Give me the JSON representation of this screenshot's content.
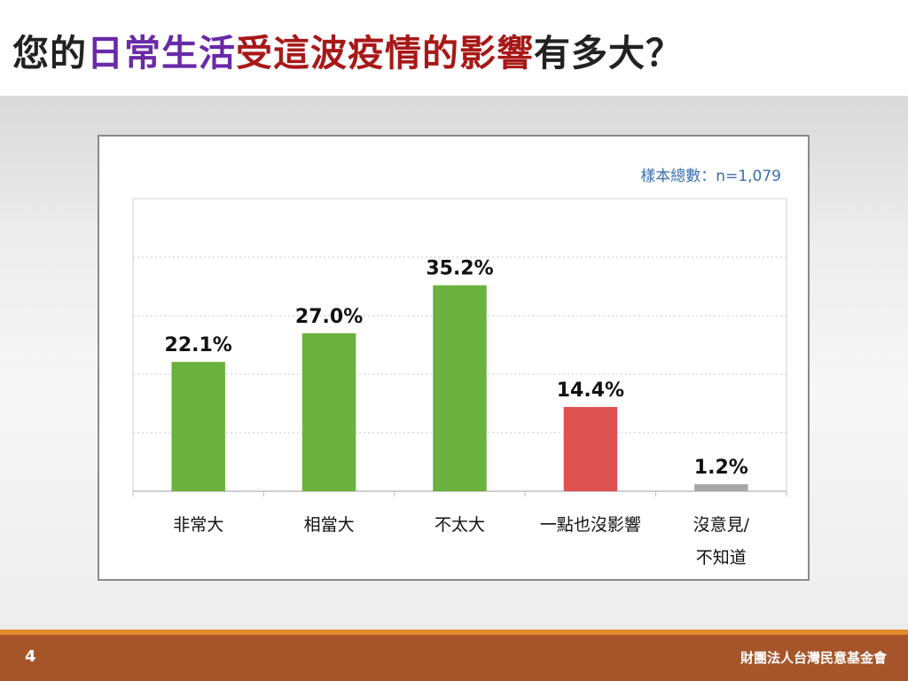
{
  "slide": {
    "title_segments": [
      {
        "text": "您的",
        "color": "#222222"
      },
      {
        "text": "日常生活",
        "color": "#6a2aa8"
      },
      {
        "text": "受這波疫情的影響",
        "color": "#a81818"
      },
      {
        "text": "有多大？",
        "color": "#222222"
      }
    ],
    "page_number": "4",
    "organization": "財團法人台灣民意基金會"
  },
  "chart_data": {
    "type": "bar",
    "note": "樣本總數：n=1,079",
    "categories": [
      [
        "非常大"
      ],
      [
        "相當大"
      ],
      [
        "不太大"
      ],
      [
        "一點也沒影響"
      ],
      [
        "沒意見/",
        "不知道"
      ]
    ],
    "values": [
      22.1,
      27.0,
      35.2,
      14.4,
      1.2
    ],
    "value_labels": [
      "22.1%",
      "27.0%",
      "35.2%",
      "14.4%",
      "1.2%"
    ],
    "bar_colors": [
      "#6ab23d",
      "#6ab23d",
      "#6ab23d",
      "#de5252",
      "#a6a6a6"
    ],
    "ylim": [
      0,
      50
    ],
    "grid": true
  }
}
